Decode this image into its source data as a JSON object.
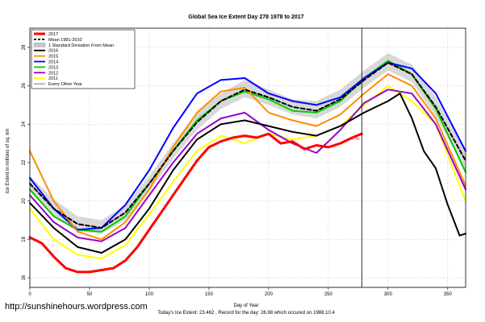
{
  "chart_data": {
    "type": "line",
    "title": "Global Sea Ice Extent Day 278 1978 to 2017",
    "xlabel": "Day of Year",
    "ylabel": "Ice Extent in millions of sq. km",
    "xlim": [
      0,
      365
    ],
    "ylim": [
      15.5,
      29
    ],
    "x_ticks": [
      0,
      50,
      100,
      150,
      200,
      250,
      300,
      350
    ],
    "y_ticks": [
      16,
      18,
      20,
      22,
      24,
      26,
      28
    ],
    "grid": true,
    "legend_position": "top-left",
    "current_day_marker": 278,
    "marker_value_label": "23.462",
    "footer": "Today's Ice Extent: 23.462 , Record for the day: 26.98 which occured on 1988.10.4",
    "watermark": "http://sunshinehours.wordpress.com",
    "legend": [
      {
        "label": "2017",
        "color": "#ff0000",
        "style": "thick"
      },
      {
        "label": "Mean 1981-2010",
        "color": "#000000",
        "style": "dashed"
      },
      {
        "label": "1 Standard Deviation From Mean",
        "color": "#bbbbbb",
        "style": "band"
      },
      {
        "label": "2016",
        "color": "#000000",
        "style": "solid"
      },
      {
        "label": "2015",
        "color": "#ff8c00",
        "style": "solid"
      },
      {
        "label": "2014",
        "color": "#0000ff",
        "style": "solid"
      },
      {
        "label": "2013",
        "color": "#00cc00",
        "style": "solid"
      },
      {
        "label": "2012",
        "color": "#9900cc",
        "style": "solid"
      },
      {
        "label": "2011",
        "color": "#ffff00",
        "style": "solid"
      },
      {
        "label": "Every Other Year",
        "color": "#555555",
        "style": "thin"
      }
    ],
    "std_band": {
      "x": [
        0,
        20,
        40,
        60,
        80,
        100,
        120,
        140,
        160,
        180,
        200,
        220,
        240,
        260,
        280,
        300,
        320,
        340,
        365
      ],
      "upper": [
        21.3,
        20.1,
        19.2,
        19.0,
        19.8,
        21.3,
        23.0,
        24.6,
        25.6,
        26.3,
        25.8,
        25.3,
        25.2,
        25.8,
        26.8,
        27.7,
        27.1,
        25.4,
        22.6
      ],
      "lower": [
        20.5,
        19.2,
        18.4,
        18.3,
        19.0,
        20.5,
        22.2,
        23.7,
        24.8,
        25.4,
        25.0,
        24.5,
        24.3,
        24.9,
        25.9,
        26.8,
        26.2,
        24.4,
        21.6
      ]
    },
    "series": [
      {
        "name": "2017",
        "color": "#ff0000",
        "width": 3,
        "x": [
          0,
          10,
          20,
          30,
          40,
          50,
          60,
          70,
          80,
          90,
          100,
          110,
          120,
          130,
          140,
          150,
          160,
          170,
          180,
          190,
          200,
          210,
          220,
          230,
          240,
          250,
          260,
          270,
          278
        ],
        "y": [
          18.1,
          17.8,
          17.1,
          16.5,
          16.3,
          16.3,
          16.4,
          16.5,
          16.9,
          17.6,
          18.5,
          19.4,
          20.3,
          21.2,
          22.1,
          22.8,
          23.1,
          23.3,
          23.4,
          23.3,
          23.5,
          23.0,
          23.1,
          22.7,
          22.9,
          22.8,
          23.0,
          23.3,
          23.5
        ]
      },
      {
        "name": "Mean 1981-2010",
        "color": "#000000",
        "width": 2,
        "dash": "5,3",
        "x": [
          0,
          20,
          40,
          60,
          80,
          100,
          120,
          140,
          160,
          180,
          200,
          220,
          240,
          260,
          280,
          300,
          320,
          340,
          365
        ],
        "y": [
          20.9,
          19.6,
          18.8,
          18.6,
          19.4,
          20.9,
          22.6,
          24.1,
          25.2,
          25.8,
          25.4,
          24.9,
          24.7,
          25.3,
          26.3,
          27.2,
          26.6,
          24.9,
          22.1
        ]
      },
      {
        "name": "2016",
        "color": "#000000",
        "width": 2,
        "x": [
          0,
          20,
          40,
          60,
          80,
          100,
          120,
          140,
          160,
          180,
          200,
          220,
          240,
          260,
          280,
          300,
          310,
          320,
          330,
          340,
          350,
          360,
          365
        ],
        "y": [
          19.9,
          18.6,
          17.6,
          17.3,
          18.0,
          19.6,
          21.6,
          23.2,
          24.0,
          24.2,
          23.9,
          23.6,
          23.4,
          23.9,
          24.6,
          25.2,
          25.6,
          24.3,
          22.6,
          21.7,
          19.8,
          18.2,
          18.3
        ]
      },
      {
        "name": "2015",
        "color": "#ff8c00",
        "width": 2,
        "x": [
          0,
          20,
          40,
          60,
          80,
          100,
          120,
          140,
          160,
          180,
          200,
          220,
          240,
          260,
          280,
          300,
          320,
          340,
          365
        ],
        "y": [
          22.6,
          20.0,
          18.4,
          18.0,
          18.9,
          20.6,
          22.8,
          24.6,
          25.7,
          25.9,
          24.6,
          24.2,
          23.9,
          24.5,
          25.6,
          26.6,
          26.0,
          24.3,
          20.8
        ]
      },
      {
        "name": "2014",
        "color": "#0000ff",
        "width": 2,
        "x": [
          0,
          20,
          40,
          60,
          80,
          100,
          120,
          140,
          160,
          180,
          200,
          220,
          240,
          260,
          280,
          300,
          320,
          340,
          365
        ],
        "y": [
          21.2,
          19.6,
          18.5,
          18.6,
          19.8,
          21.6,
          23.8,
          25.6,
          26.3,
          26.4,
          25.6,
          25.2,
          25.0,
          25.4,
          26.4,
          27.2,
          26.9,
          25.6,
          22.6
        ]
      },
      {
        "name": "2013",
        "color": "#00cc00",
        "width": 2,
        "x": [
          0,
          20,
          40,
          60,
          80,
          100,
          120,
          140,
          160,
          180,
          200,
          220,
          240,
          260,
          280,
          300,
          320,
          340,
          365
        ],
        "y": [
          20.6,
          19.2,
          18.5,
          18.4,
          19.2,
          20.9,
          22.6,
          24.2,
          25.2,
          25.7,
          25.3,
          24.7,
          24.6,
          25.2,
          26.4,
          27.3,
          26.6,
          24.8,
          21.5
        ]
      },
      {
        "name": "2012",
        "color": "#9900cc",
        "width": 2,
        "x": [
          0,
          20,
          40,
          60,
          80,
          100,
          120,
          140,
          160,
          180,
          200,
          220,
          240,
          260,
          280,
          300,
          320,
          340,
          365
        ],
        "y": [
          20.3,
          18.9,
          18.1,
          17.9,
          18.6,
          20.3,
          22.0,
          23.5,
          24.3,
          24.6,
          23.7,
          23.0,
          22.5,
          23.7,
          25.1,
          25.8,
          25.6,
          24.0,
          20.6
        ]
      },
      {
        "name": "2011",
        "color": "#ffff00",
        "width": 2,
        "x": [
          0,
          20,
          40,
          60,
          80,
          100,
          120,
          140,
          160,
          180,
          200,
          220,
          240,
          260,
          280,
          300,
          320,
          340,
          365
        ],
        "y": [
          19.6,
          18.0,
          17.2,
          17.0,
          17.7,
          19.3,
          21.0,
          22.6,
          23.4,
          23.0,
          23.5,
          23.2,
          23.4,
          23.9,
          25.0,
          26.0,
          25.2,
          24.0,
          20.0
        ]
      }
    ]
  }
}
